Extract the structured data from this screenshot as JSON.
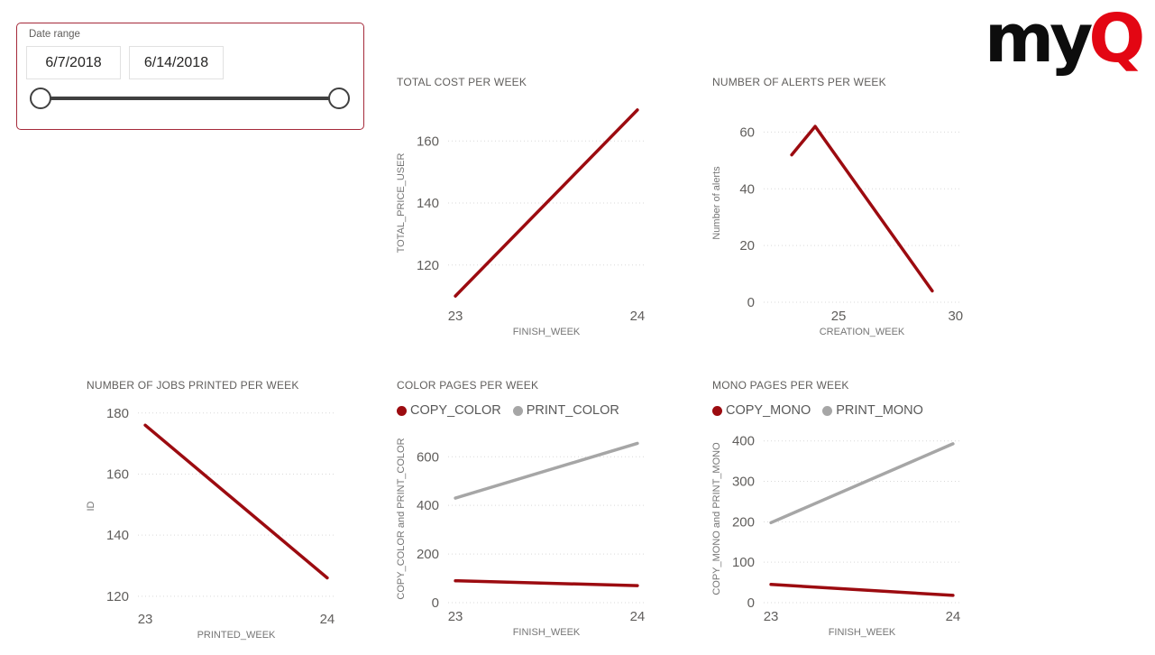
{
  "page": {
    "background": "#ffffff"
  },
  "logo": {
    "text_black": "my",
    "text_red": "Q",
    "red_color": "#e30613",
    "black_color": "#0d0d0d"
  },
  "slicer": {
    "label": "Date range",
    "start_date": "6/7/2018",
    "end_date": "6/14/2018",
    "border_color": "#a52a3a",
    "handle_color": "#404040"
  },
  "colors": {
    "series_red": "#9c0b10",
    "series_gray": "#a6a6a6",
    "tick_text": "#605e5c",
    "axis_label_text": "#757575",
    "gridline": "#d9d9d9"
  },
  "chart_data": [
    {
      "type": "line",
      "title": "TOTAL COST PER WEEK",
      "xlabel": "FINISH_WEEK",
      "ylabel": "TOTAL_PRICE_USER",
      "xlim": [
        22.96,
        24.04
      ],
      "ylim": [
        108,
        172
      ],
      "xticks": [
        23,
        24
      ],
      "yticks": [
        120,
        140,
        160
      ],
      "grid": true,
      "legend": false,
      "series": [
        {
          "name": "TOTAL_PRICE_USER",
          "color": "#9c0b10",
          "x": [
            23,
            24
          ],
          "y": [
            110,
            170
          ]
        }
      ]
    },
    {
      "type": "line",
      "title": "NUMBER OF ALERTS PER WEEK",
      "xlabel": "CREATION_WEEK",
      "ylabel": "Number of alerts",
      "xlim": [
        21.8,
        30.2
      ],
      "ylim": [
        0,
        70
      ],
      "xticks": [
        25,
        30
      ],
      "yticks": [
        0,
        20,
        40,
        60
      ],
      "grid": true,
      "legend": false,
      "series": [
        {
          "name": "Number of alerts",
          "color": "#9c0b10",
          "x": [
            23,
            24,
            29
          ],
          "y": [
            52,
            62,
            4
          ]
        }
      ]
    },
    {
      "type": "line",
      "title": "NUMBER OF JOBS PRINTED PER WEEK",
      "xlabel": "PRINTED_WEEK",
      "ylabel": "ID",
      "xlim": [
        22.96,
        24.04
      ],
      "ylim": [
        117,
        182
      ],
      "xticks": [
        23,
        24
      ],
      "yticks": [
        120,
        140,
        160,
        180
      ],
      "grid": true,
      "legend": false,
      "series": [
        {
          "name": "ID",
          "color": "#9c0b10",
          "x": [
            23,
            24
          ],
          "y": [
            176,
            126
          ]
        }
      ]
    },
    {
      "type": "line",
      "title": "COLOR PAGES PER WEEK",
      "xlabel": "FINISH_WEEK",
      "ylabel": "COPY_COLOR and PRINT_COLOR",
      "xlim": [
        22.96,
        24.04
      ],
      "ylim": [
        0,
        690
      ],
      "xticks": [
        23,
        24
      ],
      "yticks": [
        0,
        200,
        400,
        600
      ],
      "grid": true,
      "legend": true,
      "series": [
        {
          "name": "COPY_COLOR",
          "color": "#9c0b10",
          "x": [
            23,
            24
          ],
          "y": [
            90,
            70
          ]
        },
        {
          "name": "PRINT_COLOR",
          "color": "#a6a6a6",
          "x": [
            23,
            24
          ],
          "y": [
            430,
            655
          ]
        }
      ]
    },
    {
      "type": "line",
      "title": "MONO PAGES PER WEEK",
      "xlabel": "FINISH_WEEK",
      "ylabel": "COPY_MONO and PRINT_MONO",
      "xlim": [
        22.96,
        24.04
      ],
      "ylim": [
        0,
        415
      ],
      "xticks": [
        23,
        24
      ],
      "yticks": [
        0,
        100,
        200,
        300,
        400
      ],
      "grid": true,
      "legend": true,
      "series": [
        {
          "name": "COPY_MONO",
          "color": "#9c0b10",
          "x": [
            23,
            24
          ],
          "y": [
            45,
            18
          ]
        },
        {
          "name": "PRINT_MONO",
          "color": "#a6a6a6",
          "x": [
            23,
            24
          ],
          "y": [
            198,
            393
          ]
        }
      ]
    }
  ]
}
